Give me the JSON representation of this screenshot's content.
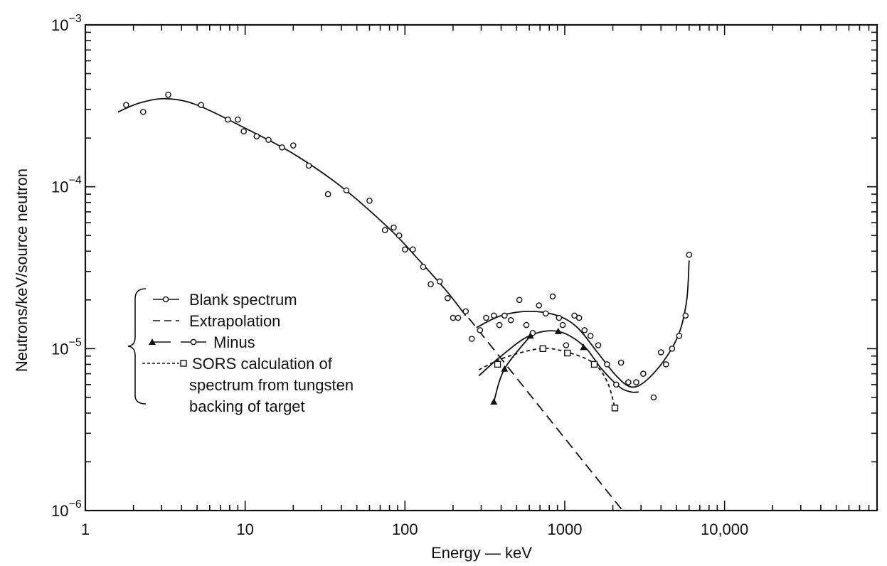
{
  "chart_data": {
    "type": "scatter",
    "xlabel": "Energy — keV",
    "ylabel": "Neutrons/keV/source neutron",
    "x_scale": "log",
    "y_scale": "log",
    "xlim": [
      1,
      90000
    ],
    "ylim": [
      1e-06,
      0.001
    ],
    "x_tick_labels": [
      {
        "value": 1,
        "label": "1"
      },
      {
        "value": 10,
        "label": "10"
      },
      {
        "value": 100,
        "label": "100"
      },
      {
        "value": 1000,
        "label": "1000"
      },
      {
        "value": 10000,
        "label": "10,000"
      }
    ],
    "y_tick_labels": [
      {
        "value": 1e-06,
        "base": "10",
        "exp": "−6"
      },
      {
        "value": 1e-05,
        "base": "10",
        "exp": "−5"
      },
      {
        "value": 0.0001,
        "base": "10",
        "exp": "−4"
      },
      {
        "value": 0.001,
        "base": "10",
        "exp": "−3"
      }
    ],
    "grid": false,
    "legend_position": "left",
    "legend": [
      {
        "label": "Blank spectrum",
        "style": "solid",
        "marker": "circle"
      },
      {
        "label": "Extrapolation",
        "style": "dashed",
        "marker": "none"
      },
      {
        "label": "Minus",
        "style": "solid",
        "marker": "triangle-circle"
      },
      {
        "label": "SORS calculation of",
        "style": "dotted",
        "marker": "square"
      },
      {
        "label": "spectrum from tungsten",
        "style": "none",
        "marker": "none"
      },
      {
        "label": "backing of target",
        "style": "none",
        "marker": "none"
      }
    ],
    "series": [
      {
        "name": "Blank spectrum",
        "kind": "points",
        "marker": "circle",
        "points": [
          [
            1.8,
            0.00032
          ],
          [
            2.3,
            0.00029
          ],
          [
            3.3,
            0.00037
          ],
          [
            5.3,
            0.00032
          ],
          [
            7.8,
            0.00026
          ],
          [
            9.0,
            0.00026
          ],
          [
            9.8,
            0.00022
          ],
          [
            11.8,
            0.000205
          ],
          [
            14.0,
            0.000195
          ],
          [
            17.0,
            0.000175
          ],
          [
            20.0,
            0.00018
          ],
          [
            25.0,
            0.000135
          ],
          [
            33.0,
            9e-05
          ],
          [
            43.0,
            9.5e-05
          ],
          [
            60.0,
            8.2e-05
          ],
          [
            75.0,
            5.4e-05
          ],
          [
            85.0,
            5.6e-05
          ],
          [
            92.0,
            5e-05
          ],
          [
            100.0,
            4.1e-05
          ],
          [
            112.0,
            4.1e-05
          ],
          [
            130.0,
            3.2e-05
          ],
          [
            145.0,
            2.5e-05
          ],
          [
            165.0,
            2.6e-05
          ],
          [
            185.0,
            2.05e-05
          ],
          [
            200.0,
            1.55e-05
          ],
          [
            215.0,
            1.55e-05
          ],
          [
            240.0,
            1.7e-05
          ],
          [
            262.0,
            1.15e-05
          ],
          [
            295.0,
            1.3e-05
          ],
          [
            322.0,
            1.55e-05
          ],
          [
            360.0,
            1.6e-05
          ],
          [
            390.0,
            1.4e-05
          ],
          [
            420.0,
            1.6e-05
          ],
          [
            460.0,
            1.5e-05
          ],
          [
            520.0,
            2e-05
          ],
          [
            575.0,
            1.4e-05
          ],
          [
            630.0,
            1.25e-05
          ],
          [
            690.0,
            1.85e-05
          ],
          [
            760.0,
            1.65e-05
          ],
          [
            840.0,
            2.1e-05
          ],
          [
            920.0,
            1.55e-05
          ],
          [
            970.0,
            1.4e-05
          ],
          [
            1020.0,
            1.05e-05
          ],
          [
            1150.0,
            1.6e-05
          ],
          [
            1230.0,
            1.55e-05
          ],
          [
            1330.0,
            1.3e-05
          ],
          [
            1450.0,
            1.2e-05
          ],
          [
            1620.0,
            1.05e-05
          ],
          [
            1840.0,
            8e-06
          ],
          [
            2100.0,
            6e-06
          ],
          [
            2250.0,
            8.2e-06
          ],
          [
            2500.0,
            6.2e-06
          ],
          [
            2800.0,
            6.2e-06
          ],
          [
            3100.0,
            7e-06
          ],
          [
            3600.0,
            5e-06
          ],
          [
            4000.0,
            9.5e-06
          ],
          [
            4300.0,
            8e-06
          ],
          [
            4700.0,
            1e-05
          ],
          [
            5200.0,
            1.2e-05
          ],
          [
            5700.0,
            1.6e-05
          ],
          [
            6000.0,
            3.8e-05
          ]
        ]
      },
      {
        "name": "Blank spectrum",
        "kind": "line",
        "style": "solid",
        "points": [
          [
            1.6,
            0.00029
          ],
          [
            2.2,
            0.00033
          ],
          [
            3.2,
            0.00035
          ],
          [
            5.0,
            0.00032
          ],
          [
            10.0,
            0.00023
          ],
          [
            20.0,
            0.00016
          ],
          [
            40.0,
            0.0001
          ],
          [
            80.0,
            5.5e-05
          ],
          [
            120.0,
            3.6e-05
          ],
          [
            180.0,
            2.3e-05
          ],
          [
            240.0,
            1.6e-05
          ]
        ]
      },
      {
        "name": "Blank spectrum",
        "kind": "line",
        "style": "solid",
        "points": [
          [
            280.0,
            1.35e-05
          ],
          [
            400.0,
            1.6e-05
          ],
          [
            600.0,
            1.7e-05
          ],
          [
            900.0,
            1.6e-05
          ],
          [
            1200.0,
            1.35e-05
          ],
          [
            1600.0,
            9.5e-06
          ],
          [
            2100.0,
            6.8e-06
          ],
          [
            2600.0,
            5.8e-06
          ],
          [
            3200.0,
            6.3e-06
          ],
          [
            4200.0,
            8.5e-06
          ],
          [
            5200.0,
            1.25e-05
          ],
          [
            5800.0,
            2e-05
          ],
          [
            6000.0,
            3.5e-05
          ]
        ]
      },
      {
        "name": "Extrapolation",
        "kind": "line",
        "style": "dashed",
        "points": [
          [
            250.0,
            1.55e-05
          ],
          [
            2300.0,
            1e-06
          ]
        ]
      },
      {
        "name": "Minus",
        "kind": "points",
        "marker": "triangle",
        "points": [
          [
            360.0,
            4.7e-06
          ],
          [
            420.0,
            7.5e-06
          ],
          [
            610.0,
            1.2e-05
          ],
          [
            910.0,
            1.28e-05
          ],
          [
            1310.0,
            1.02e-05
          ]
        ]
      },
      {
        "name": "Minus",
        "kind": "line",
        "style": "solid",
        "points": [
          [
            290.0,
            6.8e-06
          ],
          [
            400.0,
            9e-06
          ],
          [
            600.0,
            1.2e-05
          ],
          [
            900.0,
            1.28e-05
          ],
          [
            1300.0,
            1.05e-05
          ],
          [
            1700.0,
            7.5e-06
          ],
          [
            2200.0,
            5.8e-06
          ],
          [
            2600.0,
            5.4e-06
          ],
          [
            2900.0,
            5.4e-06
          ]
        ]
      },
      {
        "name": "Minus (triangle branch)",
        "kind": "line",
        "style": "solid",
        "points": [
          [
            360.0,
            4.7e-06
          ],
          [
            420.0,
            7.5e-06
          ],
          [
            610.0,
            1.2e-05
          ]
        ]
      },
      {
        "name": "SORS calculation",
        "kind": "points",
        "marker": "square",
        "points": [
          [
            380.0,
            8e-06
          ],
          [
            730.0,
            1e-05
          ],
          [
            1040.0,
            9.4e-06
          ],
          [
            1530.0,
            8e-06
          ],
          [
            2060.0,
            4.3e-06
          ]
        ]
      },
      {
        "name": "SORS calculation",
        "kind": "line",
        "style": "dotted",
        "points": [
          [
            290.0,
            7.4e-06
          ],
          [
            420.0,
            8.8e-06
          ],
          [
            700.0,
            1e-05
          ],
          [
            1000.0,
            9.6e-06
          ],
          [
            1500.0,
            8.2e-06
          ],
          [
            1850.0,
            6.2e-06
          ],
          [
            2060.0,
            4.3e-06
          ]
        ]
      }
    ]
  }
}
